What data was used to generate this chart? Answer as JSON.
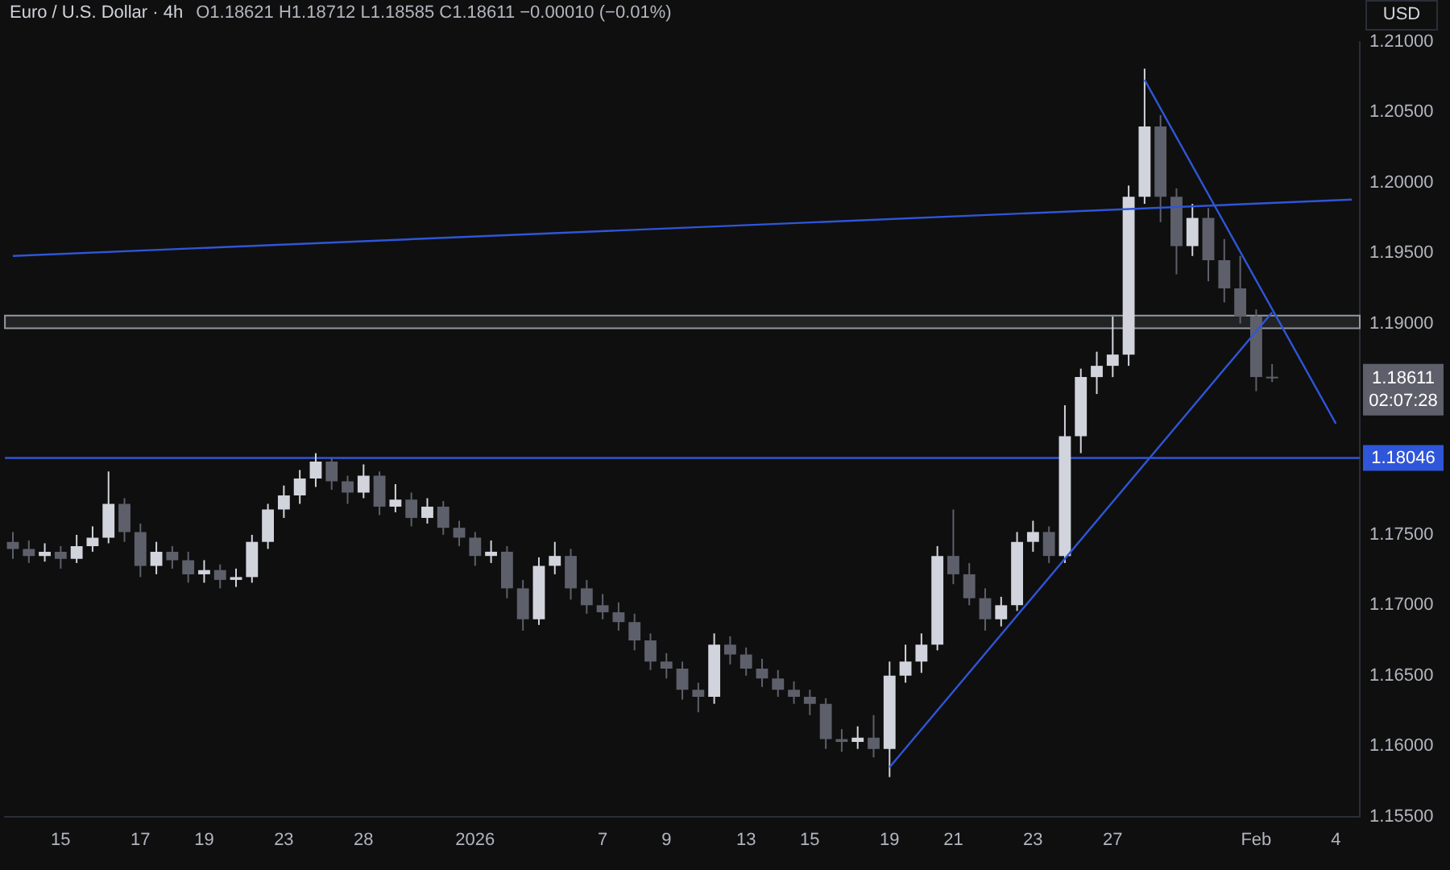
{
  "chart_data": {
    "type": "candlestick",
    "title": "Euro / U.S. Dollar · 4h",
    "subtitle": "O1.18621 H1.18712 L1.18585 C1.18611 −0.00010 (−0.01%)",
    "ylabel": "USD",
    "categories": [
      null,
      null,
      null,
      "15",
      null,
      null,
      null,
      null,
      "17",
      null,
      null,
      null,
      "19",
      null,
      null,
      null,
      null,
      "23",
      null,
      null,
      null,
      null,
      "28",
      null,
      null,
      null,
      null,
      null,
      null,
      "2026",
      null,
      null,
      null,
      null,
      null,
      null,
      null,
      "7",
      null,
      null,
      null,
      "9",
      null,
      null,
      null,
      null,
      "13",
      null,
      null,
      null,
      "15",
      null,
      null,
      null,
      null,
      "19",
      null,
      null,
      null,
      "21",
      null,
      null,
      null,
      null,
      "23",
      null,
      null,
      null,
      null,
      "27",
      null,
      null,
      null,
      null,
      null,
      null,
      null,
      null,
      "Feb",
      null,
      null,
      null,
      null,
      "4",
      null
    ],
    "ohlc": [
      [
        1.1745,
        1.1752,
        1.1733,
        1.174
      ],
      [
        1.174,
        1.1746,
        1.173,
        1.1735
      ],
      [
        1.1735,
        1.1744,
        1.1731,
        1.1738
      ],
      [
        1.1738,
        1.1742,
        1.1726,
        1.1733
      ],
      [
        1.1733,
        1.175,
        1.173,
        1.1742
      ],
      [
        1.1742,
        1.1756,
        1.1738,
        1.1748
      ],
      [
        1.1748,
        1.1795,
        1.1744,
        1.1772
      ],
      [
        1.1772,
        1.1776,
        1.1745,
        1.1752
      ],
      [
        1.1752,
        1.1758,
        1.172,
        1.1728
      ],
      [
        1.1728,
        1.1745,
        1.1722,
        1.1738
      ],
      [
        1.1738,
        1.1742,
        1.1726,
        1.1732
      ],
      [
        1.1732,
        1.1738,
        1.1716,
        1.1722
      ],
      [
        1.1722,
        1.1732,
        1.1716,
        1.1725
      ],
      [
        1.1725,
        1.1729,
        1.1712,
        1.1718
      ],
      [
        1.1718,
        1.1726,
        1.1713,
        1.172
      ],
      [
        1.172,
        1.175,
        1.1716,
        1.1745
      ],
      [
        1.1745,
        1.1772,
        1.174,
        1.1768
      ],
      [
        1.1768,
        1.1785,
        1.1762,
        1.1778
      ],
      [
        1.1778,
        1.1796,
        1.1772,
        1.179
      ],
      [
        1.179,
        1.1808,
        1.1784,
        1.1802
      ],
      [
        1.1802,
        1.1805,
        1.1782,
        1.1788
      ],
      [
        1.1788,
        1.1792,
        1.1772,
        1.178
      ],
      [
        1.178,
        1.18,
        1.1776,
        1.1792
      ],
      [
        1.1792,
        1.1795,
        1.1764,
        1.177
      ],
      [
        1.177,
        1.1786,
        1.1766,
        1.1775
      ],
      [
        1.1775,
        1.178,
        1.1756,
        1.1762
      ],
      [
        1.1762,
        1.1776,
        1.1758,
        1.177
      ],
      [
        1.177,
        1.1774,
        1.175,
        1.1755
      ],
      [
        1.1755,
        1.176,
        1.1742,
        1.1748
      ],
      [
        1.1748,
        1.1752,
        1.1728,
        1.1735
      ],
      [
        1.1735,
        1.1746,
        1.173,
        1.1738
      ],
      [
        1.1738,
        1.1742,
        1.1705,
        1.1712
      ],
      [
        1.1712,
        1.1718,
        1.1682,
        1.169
      ],
      [
        1.169,
        1.1734,
        1.1686,
        1.1728
      ],
      [
        1.1728,
        1.1745,
        1.1722,
        1.1735
      ],
      [
        1.1735,
        1.174,
        1.1704,
        1.1712
      ],
      [
        1.1712,
        1.1718,
        1.1694,
        1.17
      ],
      [
        1.17,
        1.1708,
        1.169,
        1.1695
      ],
      [
        1.1695,
        1.1702,
        1.1682,
        1.1688
      ],
      [
        1.1688,
        1.1694,
        1.1668,
        1.1675
      ],
      [
        1.1675,
        1.168,
        1.1654,
        1.166
      ],
      [
        1.166,
        1.1666,
        1.1648,
        1.1655
      ],
      [
        1.1655,
        1.166,
        1.1633,
        1.164
      ],
      [
        1.164,
        1.1645,
        1.1624,
        1.1635
      ],
      [
        1.1635,
        1.168,
        1.163,
        1.1672
      ],
      [
        1.1672,
        1.1678,
        1.1658,
        1.1665
      ],
      [
        1.1665,
        1.167,
        1.165,
        1.1655
      ],
      [
        1.1655,
        1.1662,
        1.1642,
        1.1648
      ],
      [
        1.1648,
        1.1654,
        1.1635,
        1.164
      ],
      [
        1.164,
        1.1646,
        1.163,
        1.1635
      ],
      [
        1.1635,
        1.164,
        1.1622,
        1.163
      ],
      [
        1.163,
        1.1634,
        1.1598,
        1.1605
      ],
      [
        1.1605,
        1.1612,
        1.1596,
        1.1603
      ],
      [
        1.1603,
        1.1614,
        1.1598,
        1.1606
      ],
      [
        1.1606,
        1.1622,
        1.1592,
        1.1598
      ],
      [
        1.1598,
        1.166,
        1.1578,
        1.165
      ],
      [
        1.165,
        1.1672,
        1.1645,
        1.166
      ],
      [
        1.166,
        1.168,
        1.1652,
        1.1672
      ],
      [
        1.1672,
        1.1742,
        1.1668,
        1.1735
      ],
      [
        1.1735,
        1.1768,
        1.1715,
        1.1722
      ],
      [
        1.1722,
        1.173,
        1.17,
        1.1705
      ],
      [
        1.1705,
        1.1712,
        1.1682,
        1.169
      ],
      [
        1.169,
        1.1706,
        1.1685,
        1.17
      ],
      [
        1.17,
        1.1752,
        1.1696,
        1.1745
      ],
      [
        1.1745,
        1.176,
        1.1738,
        1.1752
      ],
      [
        1.1752,
        1.1756,
        1.173,
        1.1735
      ],
      [
        1.1735,
        1.1842,
        1.173,
        1.182
      ],
      [
        1.182,
        1.1868,
        1.1808,
        1.1862
      ],
      [
        1.1862,
        1.188,
        1.185,
        1.187
      ],
      [
        1.187,
        1.1905,
        1.1862,
        1.1878
      ],
      [
        1.1878,
        1.1998,
        1.187,
        1.199
      ],
      [
        1.199,
        1.2081,
        1.1985,
        1.204
      ],
      [
        1.204,
        1.2048,
        1.1972,
        1.199
      ],
      [
        1.199,
        1.1996,
        1.1935,
        1.1955
      ],
      [
        1.1955,
        1.1985,
        1.1948,
        1.1975
      ],
      [
        1.1975,
        1.1982,
        1.193,
        1.1945
      ],
      [
        1.1945,
        1.196,
        1.1915,
        1.1925
      ],
      [
        1.1925,
        1.1948,
        1.19,
        1.1905
      ],
      [
        1.1905,
        1.191,
        1.1852,
        1.18621
      ],
      [
        1.18621,
        1.18712,
        1.18585,
        1.18611
      ],
      null,
      null,
      null,
      null,
      null
    ],
    "colors": [
      "#5d606b",
      "#5d606b",
      "#d1d4dc",
      "#5d606b",
      "#d1d4dc",
      "#d1d4dc",
      "#d1d4dc",
      "#5d606b",
      "#5d606b",
      "#d1d4dc",
      "#5d606b",
      "#5d606b",
      "#d1d4dc",
      "#5d606b",
      "#d1d4dc",
      "#d1d4dc",
      "#d1d4dc",
      "#d1d4dc",
      "#d1d4dc",
      "#d1d4dc",
      "#5d606b",
      "#5d606b",
      "#d1d4dc",
      "#5d606b",
      "#d1d4dc",
      "#5d606b",
      "#d1d4dc",
      "#5d606b",
      "#5d606b",
      "#5d606b",
      "#d1d4dc",
      "#5d606b",
      "#5d606b",
      "#d1d4dc",
      "#d1d4dc",
      "#5d606b",
      "#5d606b",
      "#5d606b",
      "#5d606b",
      "#5d606b",
      "#5d606b",
      "#5d606b",
      "#5d606b",
      "#5d606b",
      "#d1d4dc",
      "#5d606b",
      "#5d606b",
      "#5d606b",
      "#5d606b",
      "#5d606b",
      "#5d606b",
      "#5d606b",
      "#5d606b",
      "#d1d4dc",
      "#5d606b",
      "#d1d4dc",
      "#d1d4dc",
      "#d1d4dc",
      "#d1d4dc",
      "#5d606b",
      "#5d606b",
      "#5d606b",
      "#d1d4dc",
      "#d1d4dc",
      "#d1d4dc",
      "#5d606b",
      "#d1d4dc",
      "#d1d4dc",
      "#d1d4dc",
      "#d1d4dc",
      "#d1d4dc",
      "#d1d4dc",
      "#5d606b",
      "#5d606b",
      "#d1d4dc",
      "#5d606b",
      "#5d606b",
      "#5d606b",
      "#5d606b",
      "#5d606b",
      null,
      null,
      null,
      null,
      null
    ],
    "series": [
      {
        "type": "line",
        "color": "#2f56d8",
        "values": [
          1.1948,
          null,
          null,
          null,
          null,
          null,
          null,
          null,
          null,
          null,
          null,
          null,
          null,
          null,
          null,
          null,
          null,
          null,
          null,
          null,
          null,
          null,
          null,
          null,
          null,
          null,
          null,
          null,
          null,
          null,
          null,
          null,
          null,
          null,
          null,
          null,
          null,
          null,
          null,
          null,
          null,
          null,
          null,
          null,
          null,
          null,
          null,
          null,
          null,
          null,
          null,
          null,
          null,
          null,
          null,
          null,
          null,
          null,
          null,
          null,
          null,
          null,
          null,
          null,
          null,
          null,
          null,
          null,
          null,
          null,
          null,
          null,
          null,
          null,
          null,
          null,
          null,
          null,
          null,
          null,
          null,
          null,
          null,
          null,
          1.1988
        ]
      },
      {
        "type": "line",
        "color": "#2f56d8",
        "values": [
          null,
          null,
          null,
          null,
          null,
          null,
          null,
          null,
          null,
          null,
          null,
          null,
          null,
          null,
          null,
          null,
          null,
          null,
          null,
          null,
          null,
          null,
          null,
          null,
          null,
          null,
          null,
          null,
          null,
          null,
          null,
          null,
          null,
          null,
          null,
          null,
          null,
          null,
          null,
          null,
          null,
          null,
          null,
          null,
          null,
          null,
          null,
          null,
          null,
          null,
          null,
          null,
          null,
          null,
          null,
          1.1585,
          null,
          null,
          null,
          null,
          null,
          null,
          null,
          null,
          null,
          null,
          null,
          null,
          null,
          null,
          null,
          null,
          null,
          null,
          null,
          null,
          null,
          null,
          null,
          1.1908,
          null,
          null,
          null,
          null,
          null
        ]
      },
      {
        "type": "line",
        "color": "#2f56d8",
        "values": [
          null,
          null,
          null,
          null,
          null,
          null,
          null,
          null,
          null,
          null,
          null,
          null,
          null,
          null,
          null,
          null,
          null,
          null,
          null,
          null,
          null,
          null,
          null,
          null,
          null,
          null,
          null,
          null,
          null,
          null,
          null,
          null,
          null,
          null,
          null,
          null,
          null,
          null,
          null,
          null,
          null,
          null,
          null,
          null,
          null,
          null,
          null,
          null,
          null,
          null,
          null,
          null,
          null,
          null,
          null,
          null,
          null,
          null,
          null,
          null,
          null,
          null,
          null,
          null,
          null,
          null,
          null,
          null,
          null,
          null,
          null,
          1.2073,
          null,
          null,
          null,
          null,
          null,
          null,
          null,
          null,
          null,
          null,
          null,
          1.1829,
          null
        ]
      }
    ],
    "ref_lines": [
      {
        "axis": "y",
        "value": 1.18046,
        "label": "1.18046",
        "color": "#2f56d8"
      }
    ],
    "bands": [
      {
        "axis": "y",
        "from": 1.18966,
        "to": 1.19057,
        "color": "#9598a1"
      }
    ],
    "annotations": [
      "1.18611",
      "02:07:28"
    ],
    "ylim": [
      1.155,
      1.21
    ],
    "yticks": [
      {
        "value": 1.155,
        "label": "1.15500"
      },
      {
        "value": 1.16,
        "label": "1.16000"
      },
      {
        "value": 1.165,
        "label": "1.16500"
      },
      {
        "value": 1.17,
        "label": "1.17000"
      },
      {
        "value": 1.175,
        "label": "1.17500"
      },
      {
        "value": 1.19,
        "label": "1.19000"
      },
      {
        "value": 1.195,
        "label": "1.19500"
      },
      {
        "value": 1.2,
        "label": "1.20000"
      },
      {
        "value": 1.205,
        "label": "1.20500"
      },
      {
        "value": 1.21,
        "label": "1.21000"
      }
    ],
    "grid": false,
    "legend": false
  }
}
